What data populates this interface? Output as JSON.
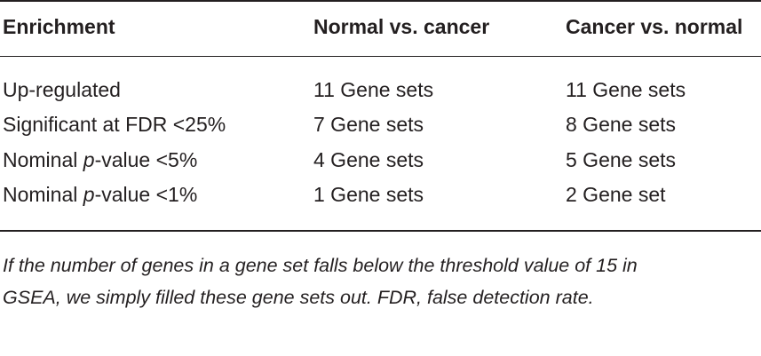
{
  "table": {
    "headers": [
      "Enrichment",
      "Normal vs. cancer",
      "Cancer vs. normal"
    ],
    "rows": [
      {
        "label_pre": "Up-regulated",
        "label_italic": "",
        "label_post": "",
        "normal_vs_cancer": "11 Gene sets",
        "cancer_vs_normal": "11 Gene sets"
      },
      {
        "label_pre": "Significant at FDR <25%",
        "label_italic": "",
        "label_post": "",
        "normal_vs_cancer": "7 Gene sets",
        "cancer_vs_normal": "8 Gene sets"
      },
      {
        "label_pre": "Nominal ",
        "label_italic": "p",
        "label_post": "-value <5%",
        "normal_vs_cancer": "4 Gene sets",
        "cancer_vs_normal": "5 Gene sets"
      },
      {
        "label_pre": "Nominal ",
        "label_italic": "p",
        "label_post": "-value <1%",
        "normal_vs_cancer": "1 Gene sets",
        "cancer_vs_normal": "2 Gene set"
      }
    ]
  },
  "footnote": {
    "line1": "If the number of genes in a gene set falls below the threshold value of 15 in",
    "line2": "GSEA, we simply filled these gene sets out. FDR, false detection rate."
  }
}
